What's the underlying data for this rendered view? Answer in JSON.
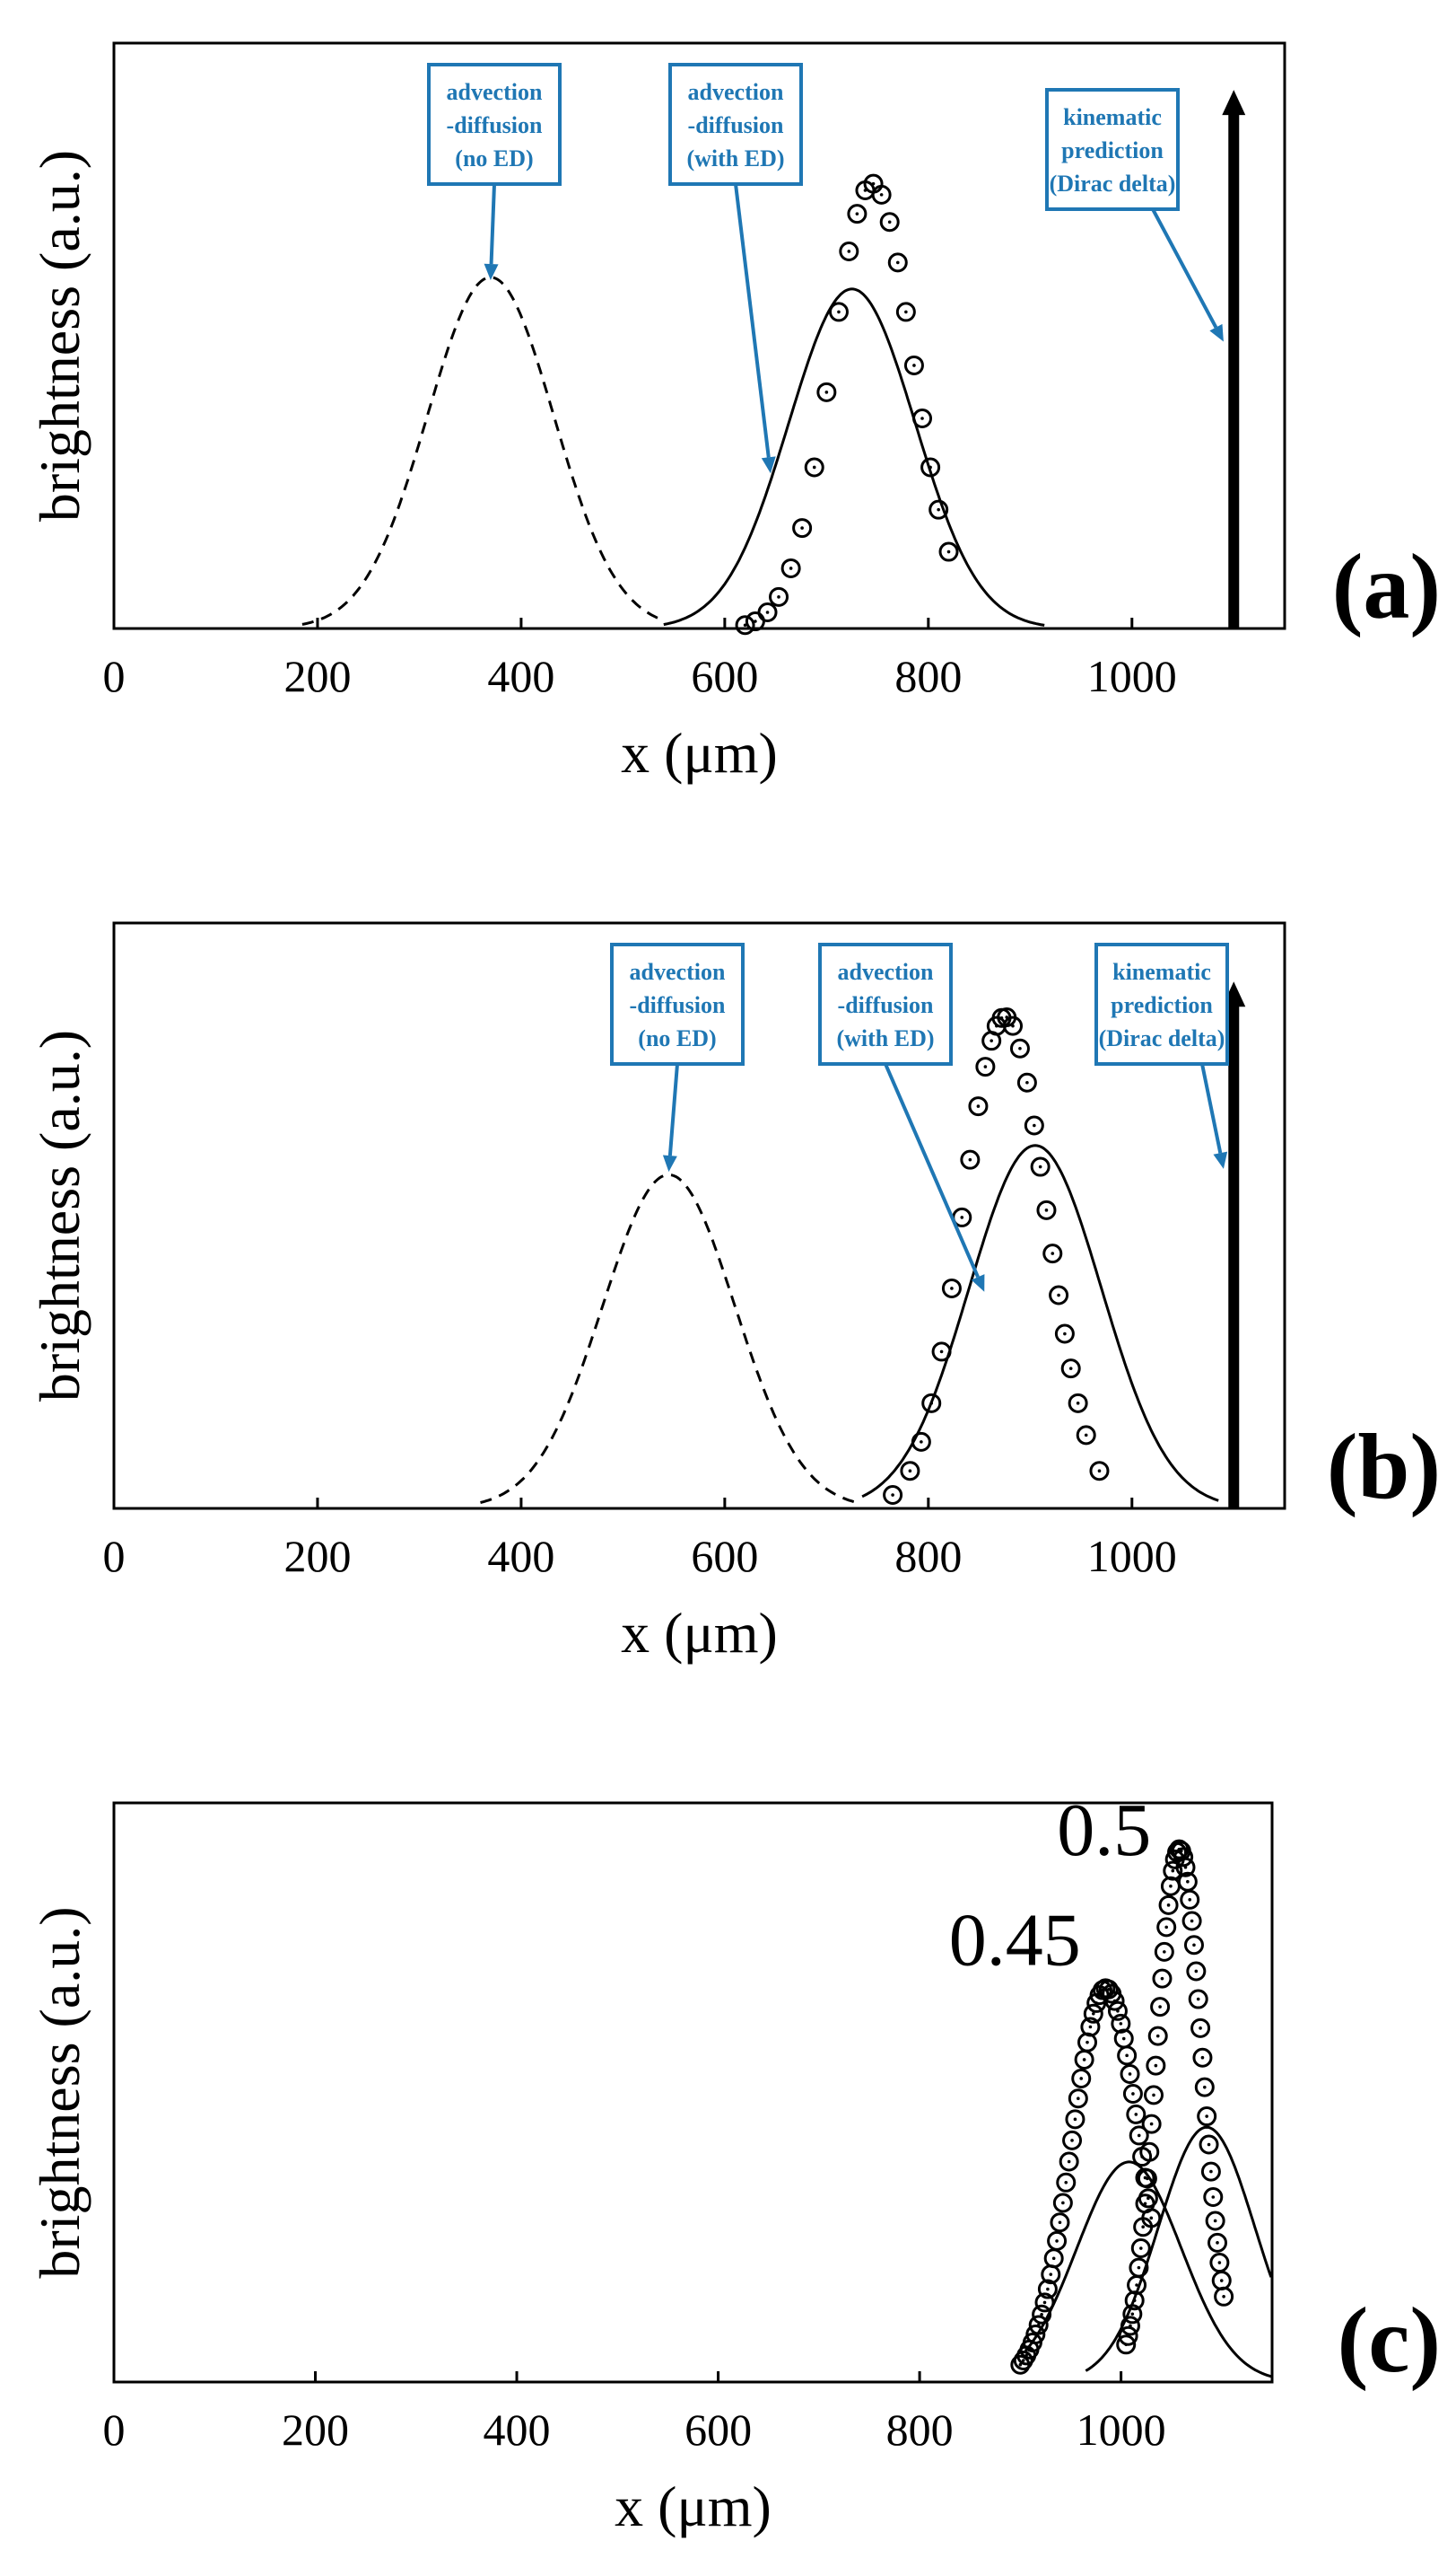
{
  "colors": {
    "annotation": "#1f77b4",
    "line": "#000000"
  },
  "chart_data": [
    {
      "type": "line",
      "panel_label": "(a)",
      "xlabel": "x (μm)",
      "ylabel": "brightness (a.u.)",
      "xlim": [
        0,
        1150
      ],
      "ylim": [
        0,
        1.0
      ],
      "xticks": [
        0,
        200,
        400,
        600,
        800,
        1000
      ],
      "series": [
        {
          "name": "advection-diffusion (no ED)",
          "style": "dashed",
          "center": 370,
          "sigma": 62,
          "amplitude": 0.6,
          "xrange": [
            185,
            540
          ]
        },
        {
          "name": "advection-diffusion (with ED)",
          "style": "solid",
          "center": 725,
          "sigma": 62,
          "amplitude": 0.58,
          "xrange": [
            540,
            915
          ]
        },
        {
          "name": "measured",
          "style": "markers",
          "center": 745,
          "sigma": 40,
          "amplitude": 0.76,
          "x": [
            620,
            630,
            642,
            653,
            665,
            676,
            688,
            700,
            712,
            722,
            730,
            738,
            746,
            754,
            762,
            770,
            778,
            786,
            794,
            802,
            810,
            820
          ]
        },
        {
          "name": "kinematic prediction (Dirac delta)",
          "style": "arrow",
          "x": 1100,
          "height": 0.92
        }
      ],
      "annotations": [
        {
          "lines": [
            "advection",
            "-diffusion",
            "(no ED)"
          ],
          "target_x": 370,
          "target_y": 0.595
        },
        {
          "lines": [
            "advection",
            "-diffusion",
            "(with ED)"
          ],
          "target_x": 645,
          "target_y": 0.265
        },
        {
          "lines": [
            "kinematic",
            "prediction",
            "(Dirac delta)"
          ],
          "target_x": 1090,
          "target_y": 0.49
        }
      ]
    },
    {
      "type": "line",
      "panel_label": "(b)",
      "xlabel": "x (μm)",
      "ylabel": "brightness (a.u.)",
      "xlim": [
        0,
        1150
      ],
      "ylim": [
        0,
        1.0
      ],
      "xticks": [
        0,
        200,
        400,
        600,
        800,
        1000
      ],
      "series": [
        {
          "name": "advection-diffusion (no ED)",
          "style": "dashed",
          "center": 545,
          "sigma": 65,
          "amplitude": 0.57,
          "xrange": [
            360,
            735
          ]
        },
        {
          "name": "advection-diffusion (with ED)",
          "style": "solid",
          "center": 905,
          "sigma": 65,
          "amplitude": 0.62,
          "xrange": [
            735,
            1085
          ]
        },
        {
          "name": "measured",
          "style": "markers",
          "center": 875,
          "sigma": 41,
          "amplitude": 0.84,
          "x": [
            765,
            782,
            793,
            803,
            813,
            823,
            833,
            841,
            849,
            856,
            862,
            867,
            872,
            877,
            883,
            890,
            897,
            904,
            910,
            916,
            922,
            928,
            934,
            940,
            947,
            955,
            968
          ]
        },
        {
          "name": "kinematic prediction (Dirac delta)",
          "style": "arrow",
          "x": 1100,
          "height": 0.9
        }
      ],
      "annotations": [
        {
          "lines": [
            "advection",
            "-diffusion",
            "(no ED)"
          ],
          "target_x": 545,
          "target_y": 0.575
        },
        {
          "lines": [
            "advection",
            "-diffusion",
            "(with ED)"
          ],
          "target_x": 855,
          "target_y": 0.37
        },
        {
          "lines": [
            "kinematic",
            "prediction",
            "(Dirac delta)"
          ],
          "target_x": 1090,
          "target_y": 0.58
        }
      ]
    },
    {
      "type": "line",
      "panel_label": "(c)",
      "xlabel": "x (μm)",
      "ylabel": "brightness (a.u.)",
      "xlim": [
        0,
        1150
      ],
      "ylim": [
        0,
        1.0
      ],
      "xticks": [
        0,
        200,
        400,
        600,
        800,
        1000
      ],
      "series": [
        {
          "name": "model 0.45",
          "style": "solid",
          "center": 1008,
          "sigma": 52,
          "amplitude": 0.38,
          "xrange": [
            905,
            1150
          ]
        },
        {
          "name": "model 0.5",
          "style": "solid",
          "center": 1085,
          "sigma": 48,
          "amplitude": 0.44,
          "xrange": [
            965,
            1150
          ]
        },
        {
          "name": "measured 0.45",
          "style": "markers",
          "center": 985,
          "sigma": 34,
          "amplitude": 0.68,
          "x_start": 900,
          "x_end": 1030,
          "count": 44
        },
        {
          "name": "measured 0.5",
          "style": "markers",
          "center": 1058,
          "sigma": 23,
          "amplitude": 0.92,
          "x_start": 1005,
          "x_end": 1102,
          "count": 47
        }
      ],
      "peak_labels": [
        {
          "text": "0.45",
          "x": 960,
          "y": 0.72
        },
        {
          "text": "0.5",
          "x": 1030,
          "y": 0.91
        }
      ]
    }
  ]
}
